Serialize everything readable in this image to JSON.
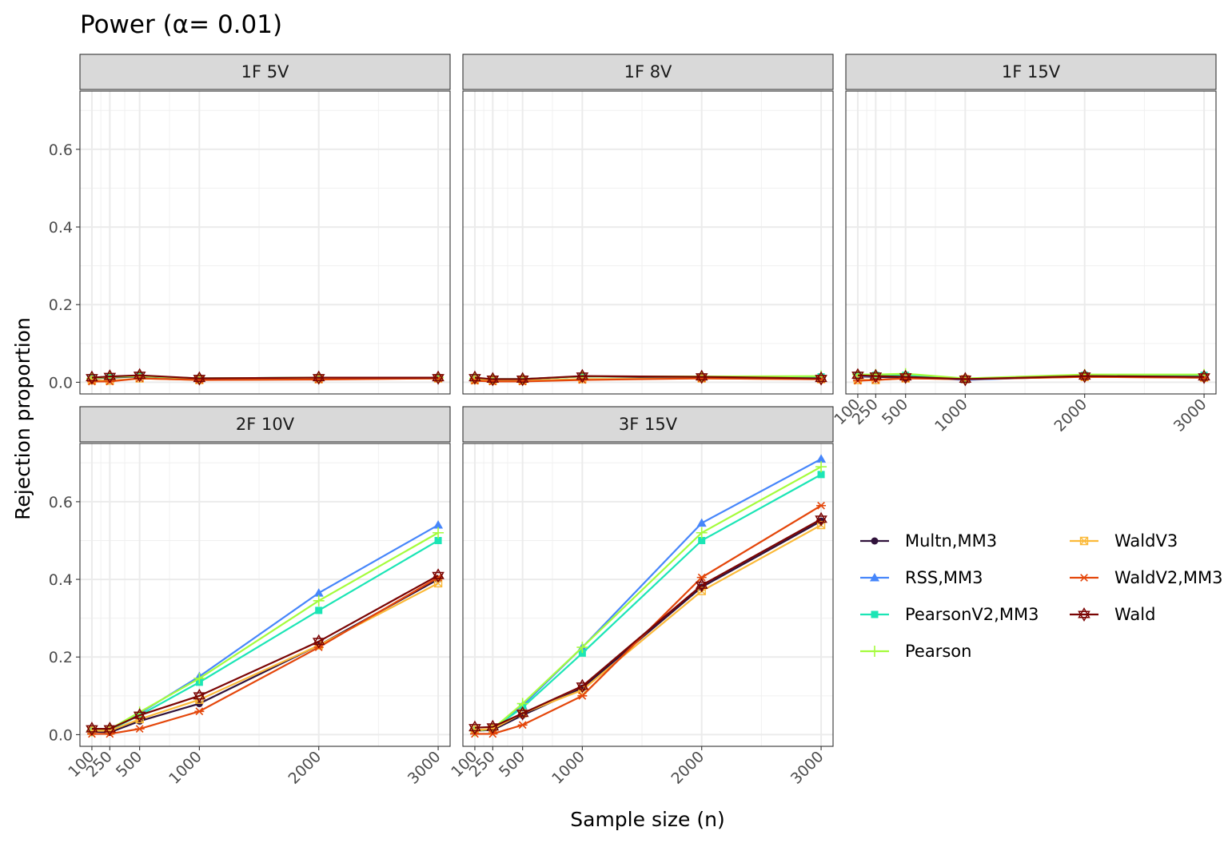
{
  "chart_data": {
    "type": "line",
    "title": "Power (α= 0.01)",
    "xlabel": "Sample size (n)",
    "ylabel": "Rejection proportion",
    "x": [
      100,
      250,
      500,
      1000,
      2000,
      3000
    ],
    "x_tick_labels": [
      "100",
      "250",
      "500",
      "1000",
      "2000",
      "3000"
    ],
    "y_ticks": [
      0.0,
      0.2,
      0.4,
      0.6
    ],
    "y_tick_labels": [
      "0.0",
      "0.2",
      "0.4",
      "0.6"
    ],
    "ylim": [
      -0.03,
      0.75
    ],
    "grid": true,
    "legend_position": "right",
    "legend_entries": [
      {
        "name": "Multn,MM3",
        "color": "#30123b",
        "marker": "circle"
      },
      {
        "name": "RSS,MM3",
        "color": "#4686fb",
        "marker": "triangle"
      },
      {
        "name": "PearsonV2,MM3",
        "color": "#1be5b5",
        "marker": "square"
      },
      {
        "name": "Pearson",
        "color": "#a4fc3c",
        "marker": "plus"
      },
      {
        "name": "WaldV3",
        "color": "#fbb938",
        "marker": "square-x"
      },
      {
        "name": "WaldV2,MM3",
        "color": "#e4460a",
        "marker": "asterisk"
      },
      {
        "name": "Wald",
        "color": "#7a0403",
        "marker": "star-of-david"
      }
    ],
    "panels": [
      {
        "label": "1F 5V",
        "series": [
          {
            "name": "Multn,MM3",
            "values": [
              0.01,
              0.012,
              0.015,
              0.01,
              0.01,
              0.01
            ]
          },
          {
            "name": "RSS,MM3",
            "values": [
              0.012,
              0.014,
              0.016,
              0.01,
              0.012,
              0.012
            ]
          },
          {
            "name": "PearsonV2,MM3",
            "values": [
              0.012,
              0.014,
              0.016,
              0.01,
              0.012,
              0.012
            ]
          },
          {
            "name": "Pearson",
            "values": [
              0.01,
              0.014,
              0.016,
              0.01,
              0.012,
              0.012
            ]
          },
          {
            "name": "WaldV3",
            "values": [
              0.005,
              0.004,
              0.01,
              0.006,
              0.008,
              0.01
            ]
          },
          {
            "name": "WaldV2,MM3",
            "values": [
              0.002,
              0.002,
              0.01,
              0.006,
              0.007,
              0.01
            ]
          },
          {
            "name": "Wald",
            "values": [
              0.012,
              0.015,
              0.018,
              0.01,
              0.012,
              0.012
            ]
          }
        ]
      },
      {
        "label": "1F 8V",
        "series": [
          {
            "name": "Multn,MM3",
            "values": [
              0.01,
              0.008,
              0.008,
              0.015,
              0.012,
              0.01
            ]
          },
          {
            "name": "RSS,MM3",
            "values": [
              0.01,
              0.008,
              0.008,
              0.015,
              0.014,
              0.014
            ]
          },
          {
            "name": "PearsonV2,MM3",
            "values": [
              0.01,
              0.008,
              0.008,
              0.015,
              0.014,
              0.014
            ]
          },
          {
            "name": "Pearson",
            "values": [
              0.01,
              0.008,
              0.008,
              0.015,
              0.015,
              0.016
            ]
          },
          {
            "name": "WaldV3",
            "values": [
              0.006,
              0.004,
              0.004,
              0.008,
              0.01,
              0.008
            ]
          },
          {
            "name": "WaldV2,MM3",
            "values": [
              0.004,
              0.002,
              0.002,
              0.006,
              0.01,
              0.008
            ]
          },
          {
            "name": "Wald",
            "values": [
              0.012,
              0.008,
              0.008,
              0.016,
              0.014,
              0.01
            ]
          }
        ]
      },
      {
        "label": "1F 15V",
        "series": [
          {
            "name": "Multn,MM3",
            "values": [
              0.015,
              0.014,
              0.012,
              0.008,
              0.015,
              0.012
            ]
          },
          {
            "name": "RSS,MM3",
            "values": [
              0.016,
              0.016,
              0.014,
              0.006,
              0.016,
              0.014
            ]
          },
          {
            "name": "PearsonV2,MM3",
            "values": [
              0.018,
              0.018,
              0.018,
              0.008,
              0.018,
              0.018
            ]
          },
          {
            "name": "Pearson",
            "values": [
              0.02,
              0.02,
              0.022,
              0.01,
              0.02,
              0.02
            ]
          },
          {
            "name": "WaldV3",
            "values": [
              0.006,
              0.006,
              0.01,
              0.008,
              0.014,
              0.012
            ]
          },
          {
            "name": "WaldV2,MM3",
            "values": [
              0.004,
              0.006,
              0.01,
              0.008,
              0.014,
              0.012
            ]
          },
          {
            "name": "Wald",
            "values": [
              0.018,
              0.016,
              0.014,
              0.008,
              0.016,
              0.014
            ]
          }
        ]
      },
      {
        "label": "2F 10V",
        "series": [
          {
            "name": "Multn,MM3",
            "values": [
              0.008,
              0.006,
              0.035,
              0.08,
              0.23,
              0.4
            ]
          },
          {
            "name": "RSS,MM3",
            "values": [
              0.01,
              0.012,
              0.055,
              0.15,
              0.365,
              0.54
            ]
          },
          {
            "name": "PearsonV2,MM3",
            "values": [
              0.01,
              0.012,
              0.05,
              0.135,
              0.32,
              0.5
            ]
          },
          {
            "name": "Pearson",
            "values": [
              0.01,
              0.014,
              0.058,
              0.145,
              0.345,
              0.52
            ]
          },
          {
            "name": "WaldV3",
            "values": [
              0.01,
              0.01,
              0.04,
              0.09,
              0.23,
              0.39
            ]
          },
          {
            "name": "WaldV2,MM3",
            "values": [
              0.002,
              0.002,
              0.015,
              0.06,
              0.225,
              0.405
            ]
          },
          {
            "name": "Wald",
            "values": [
              0.015,
              0.015,
              0.05,
              0.1,
              0.24,
              0.41
            ]
          }
        ]
      },
      {
        "label": "3F 15V",
        "series": [
          {
            "name": "Multn,MM3",
            "values": [
              0.01,
              0.012,
              0.05,
              0.12,
              0.38,
              0.55
            ]
          },
          {
            "name": "RSS,MM3",
            "values": [
              0.01,
              0.015,
              0.075,
              0.225,
              0.545,
              0.71
            ]
          },
          {
            "name": "PearsonV2,MM3",
            "values": [
              0.01,
              0.015,
              0.07,
              0.21,
              0.5,
              0.67
            ]
          },
          {
            "name": "Pearson",
            "values": [
              0.01,
              0.015,
              0.08,
              0.225,
              0.52,
              0.69
            ]
          },
          {
            "name": "WaldV3",
            "values": [
              0.012,
              0.015,
              0.055,
              0.115,
              0.37,
              0.54
            ]
          },
          {
            "name": "WaldV2,MM3",
            "values": [
              0.002,
              0.002,
              0.025,
              0.1,
              0.405,
              0.59
            ]
          },
          {
            "name": "Wald",
            "values": [
              0.018,
              0.02,
              0.055,
              0.125,
              0.385,
              0.555
            ]
          }
        ]
      }
    ]
  }
}
